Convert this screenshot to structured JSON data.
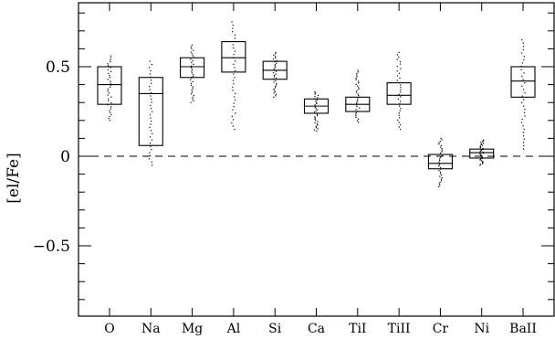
{
  "chart_data": {
    "type": "box",
    "title": "",
    "xlabel": "",
    "ylabel": "[el/Fe]",
    "ylim": [
      -0.9,
      0.85
    ],
    "yticks": [
      -0.5,
      0,
      0.5
    ],
    "ytick_labels": [
      "−0.5",
      "0",
      "0.5"
    ],
    "reference_line": {
      "y": 0,
      "style": "dashed"
    },
    "grid": false,
    "categories": [
      "O",
      "Na",
      "Mg",
      "Al",
      "Si",
      "Ca",
      "TiI",
      "TiII",
      "Cr",
      "Ni",
      "BaII"
    ],
    "boxes": [
      {
        "label": "O",
        "q1": 0.29,
        "median": 0.4,
        "q3": 0.5,
        "min": 0.2,
        "max": 0.56
      },
      {
        "label": "Na",
        "q1": 0.06,
        "median": 0.35,
        "q3": 0.44,
        "min": -0.05,
        "max": 0.53
      },
      {
        "label": "Mg",
        "q1": 0.44,
        "median": 0.5,
        "q3": 0.55,
        "min": 0.3,
        "max": 0.62
      },
      {
        "label": "Al",
        "q1": 0.47,
        "median": 0.55,
        "q3": 0.64,
        "min": 0.15,
        "max": 0.75
      },
      {
        "label": "Si",
        "q1": 0.43,
        "median": 0.48,
        "q3": 0.53,
        "min": 0.33,
        "max": 0.58
      },
      {
        "label": "Ca",
        "q1": 0.24,
        "median": 0.28,
        "q3": 0.32,
        "min": 0.14,
        "max": 0.36
      },
      {
        "label": "TiI",
        "q1": 0.25,
        "median": 0.29,
        "q3": 0.33,
        "min": 0.19,
        "max": 0.48
      },
      {
        "label": "TiII",
        "q1": 0.29,
        "median": 0.34,
        "q3": 0.41,
        "min": 0.15,
        "max": 0.58
      },
      {
        "label": "Cr",
        "q1": -0.07,
        "median": -0.04,
        "q3": 0.01,
        "min": -0.17,
        "max": 0.1
      },
      {
        "label": "Ni",
        "q1": -0.01,
        "median": 0.02,
        "q3": 0.04,
        "min": -0.05,
        "max": 0.09
      },
      {
        "label": "BaII",
        "q1": 0.33,
        "median": 0.42,
        "q3": 0.5,
        "min": 0.04,
        "max": 0.65
      }
    ]
  }
}
